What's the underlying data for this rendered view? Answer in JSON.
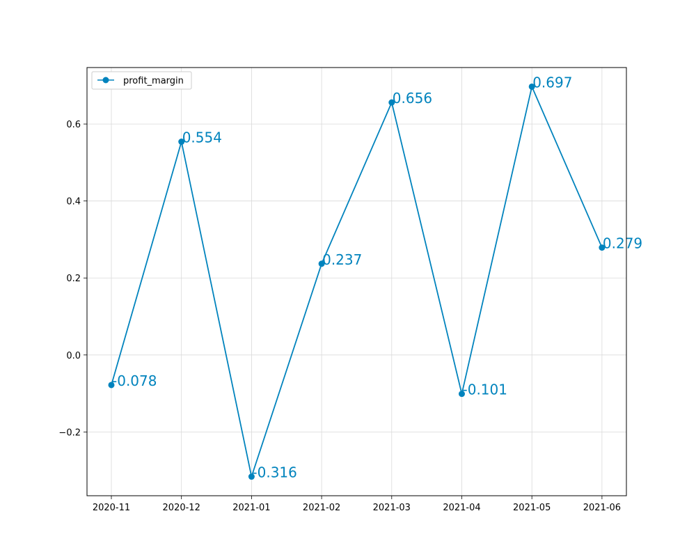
{
  "chart_data": {
    "type": "line",
    "title": "",
    "xlabel": "",
    "ylabel": "",
    "categories": [
      "2020-11",
      "2020-12",
      "2021-01",
      "2021-02",
      "2021-03",
      "2021-04",
      "2021-05",
      "2021-06"
    ],
    "series": [
      {
        "name": "profit_margin",
        "values": [
          -0.078,
          0.554,
          -0.316,
          0.237,
          0.656,
          -0.101,
          0.697,
          0.279
        ],
        "labels": [
          "-0.078",
          "0.554",
          "-0.316",
          "0.237",
          "0.656",
          "-0.101",
          "0.697",
          "0.279"
        ]
      }
    ],
    "yticks": [
      -0.2,
      0.0,
      0.2,
      0.4,
      0.6
    ],
    "ytick_labels": [
      "−0.2",
      "0.0",
      "0.2",
      "0.4",
      "0.6"
    ],
    "ylim": [
      -0.3657,
      0.7467
    ],
    "grid": true,
    "legend_position": "top-left",
    "line_color": "#0083bd"
  }
}
